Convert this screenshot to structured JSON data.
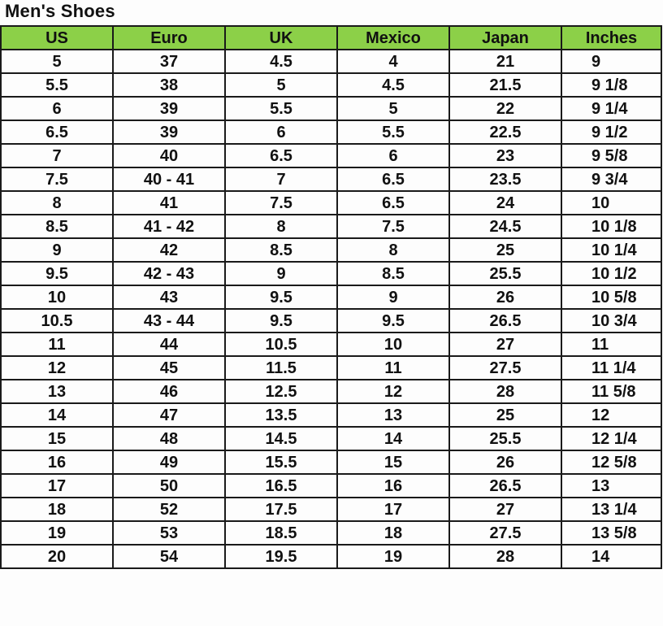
{
  "title": "Men's Shoes",
  "header_color": "#8cd048",
  "columns": [
    "US",
    "Euro",
    "UK",
    "Mexico",
    "Japan",
    "Inches"
  ],
  "rows": [
    [
      "5",
      "37",
      "4.5",
      "4",
      "21",
      "9"
    ],
    [
      "5.5",
      "38",
      "5",
      "4.5",
      "21.5",
      "9 1/8"
    ],
    [
      "6",
      "39",
      "5.5",
      "5",
      "22",
      "9 1/4"
    ],
    [
      "6.5",
      "39",
      "6",
      "5.5",
      "22.5",
      "9 1/2"
    ],
    [
      "7",
      "40",
      "6.5",
      "6",
      "23",
      "9 5/8"
    ],
    [
      "7.5",
      "40 - 41",
      "7",
      "6.5",
      "23.5",
      "9 3/4"
    ],
    [
      "8",
      "41",
      "7.5",
      "6.5",
      "24",
      "10"
    ],
    [
      "8.5",
      "41 - 42",
      "8",
      "7.5",
      "24.5",
      "10 1/8"
    ],
    [
      "9",
      "42",
      "8.5",
      "8",
      "25",
      "10 1/4"
    ],
    [
      "9.5",
      "42 - 43",
      "9",
      "8.5",
      "25.5",
      "10 1/2"
    ],
    [
      "10",
      "43",
      "9.5",
      "9",
      "26",
      "10 5/8"
    ],
    [
      "10.5",
      "43 - 44",
      "9.5",
      "9.5",
      "26.5",
      "10 3/4"
    ],
    [
      "11",
      "44",
      "10.5",
      "10",
      "27",
      "11"
    ],
    [
      "12",
      "45",
      "11.5",
      "11",
      "27.5",
      "11 1/4"
    ],
    [
      "13",
      "46",
      "12.5",
      "12",
      "28",
      "11 5/8"
    ],
    [
      "14",
      "47",
      "13.5",
      "13",
      "25",
      "12"
    ],
    [
      "15",
      "48",
      "14.5",
      "14",
      "25.5",
      "12 1/4"
    ],
    [
      "16",
      "49",
      "15.5",
      "15",
      "26",
      "12 5/8"
    ],
    [
      "17",
      "50",
      "16.5",
      "16",
      "26.5",
      "13"
    ],
    [
      "18",
      "52",
      "17.5",
      "17",
      "27",
      "13 1/4"
    ],
    [
      "19",
      "53",
      "18.5",
      "18",
      "27.5",
      "13 5/8"
    ],
    [
      "20",
      "54",
      "19.5",
      "19",
      "28",
      "14"
    ]
  ]
}
